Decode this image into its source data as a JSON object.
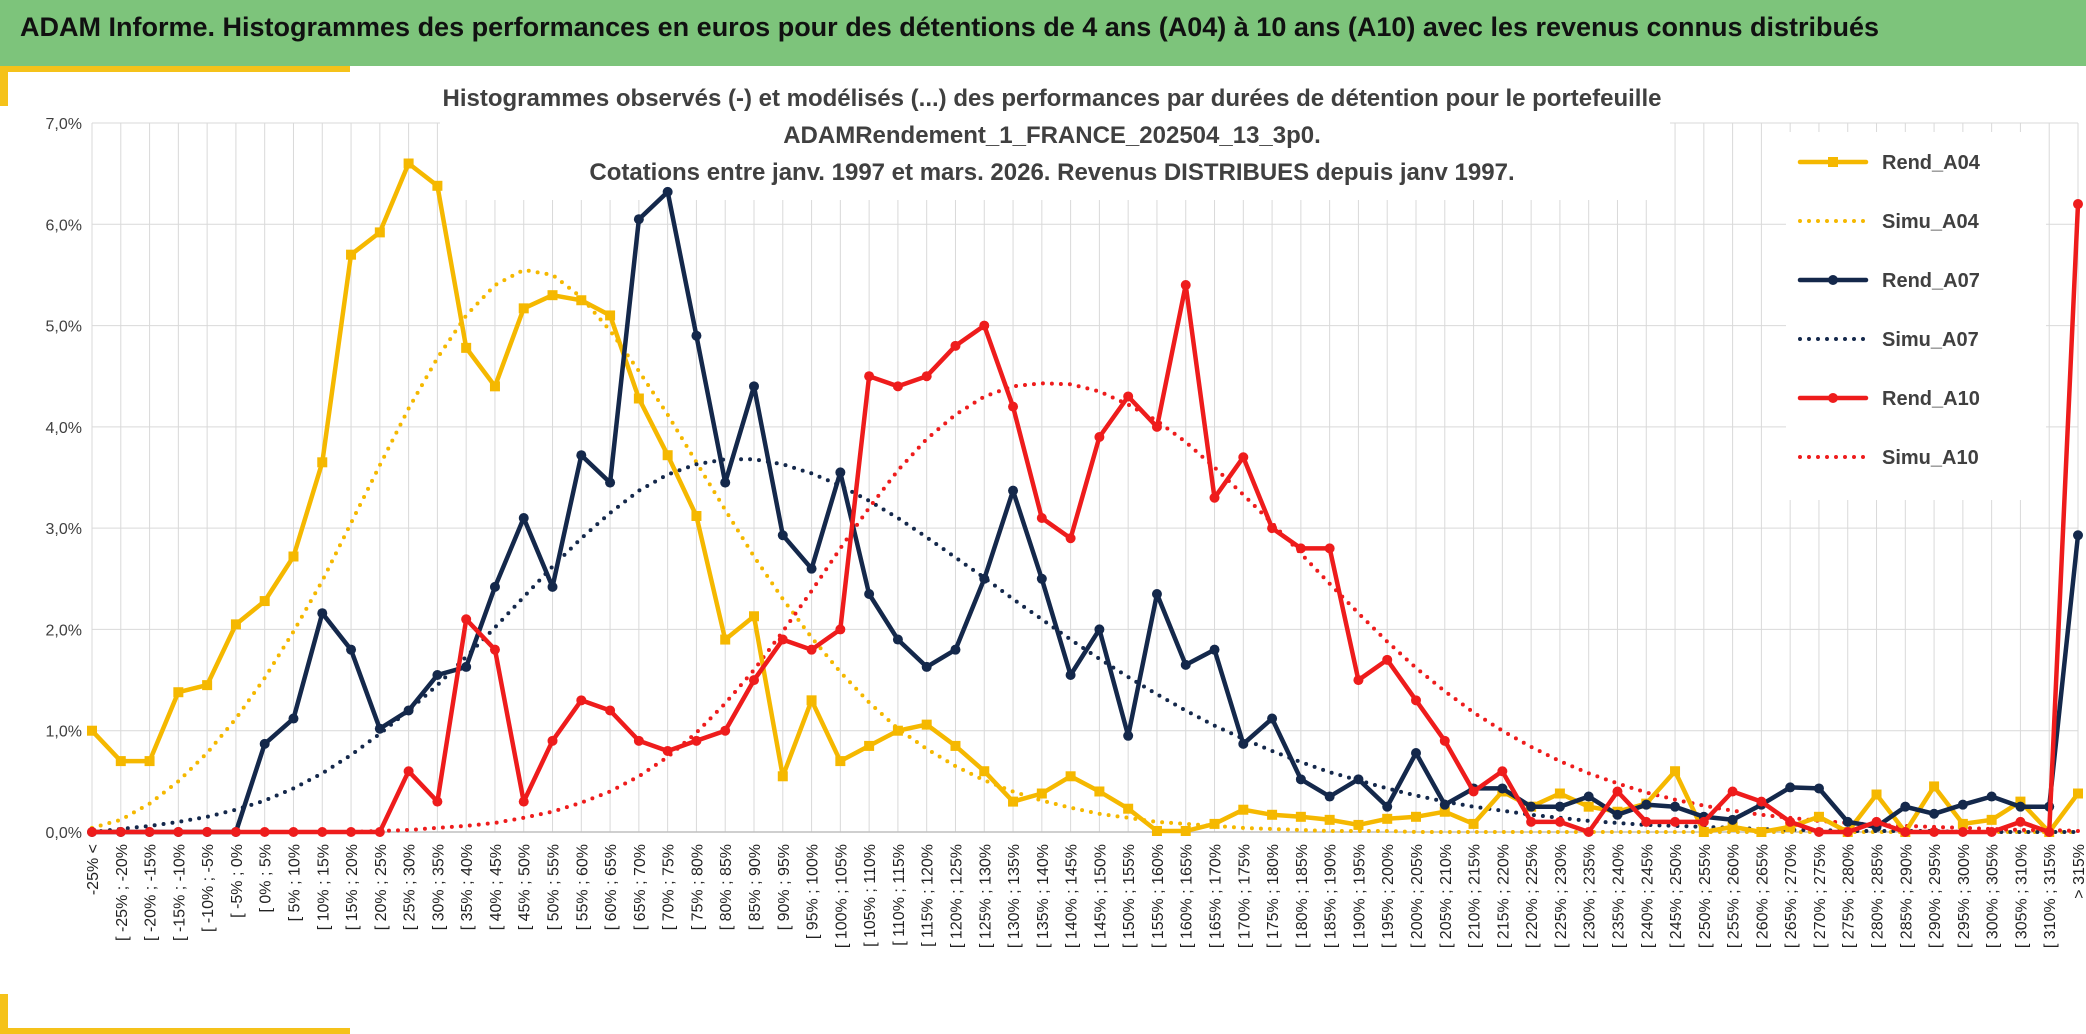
{
  "header": {
    "title": "ADAM Informe. Histogrammes des performances en euros pour des détentions de 4 ans (A04) à 10 ans (A10) avec les revenus connus distribués"
  },
  "colors": {
    "header_bg": "#7dc47b",
    "accent": "#f5c21a",
    "A04": "#f5b800",
    "A07": "#14284b",
    "A10": "#ee1c1c",
    "grid": "#d9d9d9"
  },
  "chart_data": {
    "type": "line",
    "title": "Histogrammes observés (-) et modélisés (...) des performances par durées de détention pour le portefeuille ADAMRendement_1_FRANCE_202504_13_3p0. Cotations entre janv. 1997 et mars. 2026. Revenus DISTRIBUES depuis janv 1997.",
    "title_lines": [
      "Histogrammes observés (-) et modélisés (...) des performances par durées de détention pour le portefeuille",
      "ADAMRendement_1_FRANCE_202504_13_3p0.",
      "Cotations entre janv. 1997 et mars. 2026. Revenus DISTRIBUES depuis janv 1997."
    ],
    "ylim": [
      0,
      7
    ],
    "yticks": [
      "0,0%",
      "1,0%",
      "2,0%",
      "3,0%",
      "4,0%",
      "5,0%",
      "6,0%",
      "7,0%"
    ],
    "grid": true,
    "legend_position": "right",
    "categories": [
      "-25% <",
      "[ -25% ; -20%",
      "[ -20% ; -15%",
      "[ -15% ; -10%",
      "[ -10% ; -5%",
      "[ -5% ; 0%",
      "[ 0% ; 5%",
      "[ 5% ; 10%",
      "[ 10% ; 15%",
      "[ 15% ; 20%",
      "[ 20% ; 25%",
      "[ 25% ; 30%",
      "[ 30% ; 35%",
      "[ 35% ; 40%",
      "[ 40% ; 45%",
      "[ 45% ; 50%",
      "[ 50% ; 55%",
      "[ 55% ; 60%",
      "[ 60% ; 65%",
      "[ 65% ; 70%",
      "[ 70% ; 75%",
      "[ 75% ; 80%",
      "[ 80% ; 85%",
      "[ 85% ; 90%",
      "[ 90% ; 95%",
      "[ 95% ; 100%",
      "[ 100% ; 105%",
      "[ 105% ; 110%",
      "[ 110% ; 115%",
      "[ 115% ; 120%",
      "[ 120% ; 125%",
      "[ 125% ; 130%",
      "[ 130% ; 135%",
      "[ 135% ; 140%",
      "[ 140% ; 145%",
      "[ 145% ; 150%",
      "[ 150% ; 155%",
      "[ 155% ; 160%",
      "[ 160% ; 165%",
      "[ 165% ; 170%",
      "[ 170% ; 175%",
      "[ 175% ; 180%",
      "[ 180% ; 185%",
      "[ 185% ; 190%",
      "[ 190% ; 195%",
      "[ 195% ; 200%",
      "[ 200% ; 205%",
      "[ 205% ; 210%",
      "[ 210% ; 215%",
      "[ 215% ; 220%",
      "[ 220% ; 225%",
      "[ 225% ; 230%",
      "[ 230% ; 235%",
      "[ 235% ; 240%",
      "[ 240% ; 245%",
      "[ 245% ; 250%",
      "[ 250% ; 255%",
      "[ 255% ; 260%",
      "[ 260% ; 265%",
      "[ 265% ; 270%",
      "[ 270% ; 275%",
      "[ 275% ; 280%",
      "[ 280% ; 285%",
      "[ 285% ; 290%",
      "[ 290% ; 295%",
      "[ 295% ; 300%",
      "[ 300% ; 305%",
      "[ 305% ; 310%",
      "[ 310% ; 315%",
      "> 315%"
    ],
    "series": [
      {
        "name": "Rend_A04",
        "style": "solid",
        "marker": "square",
        "color": "#f5b800",
        "values": [
          1.0,
          0.7,
          0.7,
          1.38,
          1.45,
          2.05,
          2.28,
          2.72,
          3.65,
          5.7,
          5.92,
          6.6,
          6.38,
          4.78,
          4.4,
          5.17,
          5.3,
          5.25,
          5.1,
          4.28,
          3.72,
          3.12,
          1.9,
          2.13,
          0.55,
          1.3,
          0.7,
          0.85,
          1.0,
          1.06,
          0.85,
          0.6,
          0.3,
          0.38,
          0.55,
          0.4,
          0.23,
          0.01,
          0.01,
          0.08,
          0.22,
          0.17,
          0.15,
          0.12,
          0.07,
          0.13,
          0.15,
          0.2,
          0.08,
          0.4,
          0.25,
          0.38,
          0.25,
          0.2,
          0.28,
          0.6,
          0.0,
          0.05,
          0.0,
          0.05,
          0.15,
          0.0,
          0.37,
          0.0,
          0.45,
          0.08,
          0.12,
          0.3,
          0.0,
          0.38
        ]
      },
      {
        "name": "Simu_A04",
        "style": "dotted",
        "marker": "none",
        "color": "#f5b800",
        "values": [
          0.04,
          0.12,
          0.28,
          0.5,
          0.78,
          1.12,
          1.52,
          1.98,
          2.48,
          3.05,
          3.62,
          4.18,
          4.68,
          5.1,
          5.4,
          5.55,
          5.5,
          5.28,
          4.95,
          4.55,
          4.12,
          3.65,
          3.18,
          2.72,
          2.3,
          1.92,
          1.58,
          1.28,
          1.02,
          0.82,
          0.65,
          0.51,
          0.4,
          0.31,
          0.24,
          0.18,
          0.14,
          0.1,
          0.08,
          0.06,
          0.04,
          0.03,
          0.02,
          0.01,
          0.01,
          0.01,
          0.0,
          0.0,
          0.0,
          0.0,
          0.0,
          0.0,
          0.0,
          0.0,
          0.0,
          0.0,
          0.0,
          0.0,
          0.0,
          0.0,
          0.0,
          0.0,
          0.0,
          0.0,
          0.0,
          0.0,
          0.0,
          0.0,
          0.0,
          0.0
        ]
      },
      {
        "name": "Rend_A07",
        "style": "solid",
        "marker": "circle",
        "color": "#14284b",
        "values": [
          0.0,
          0.0,
          0.0,
          0.0,
          0.0,
          0.0,
          0.87,
          1.12,
          2.16,
          1.8,
          1.02,
          1.2,
          1.55,
          1.63,
          2.42,
          3.1,
          2.42,
          3.72,
          3.45,
          6.05,
          6.32,
          4.9,
          3.45,
          4.4,
          2.93,
          2.6,
          3.55,
          2.35,
          1.9,
          1.63,
          1.8,
          2.5,
          3.37,
          2.5,
          1.55,
          2.0,
          0.95,
          2.35,
          1.65,
          1.8,
          0.87,
          1.12,
          0.52,
          0.35,
          0.52,
          0.25,
          0.78,
          0.27,
          0.43,
          0.43,
          0.25,
          0.25,
          0.35,
          0.17,
          0.27,
          0.25,
          0.15,
          0.12,
          0.27,
          0.44,
          0.43,
          0.1,
          0.05,
          0.25,
          0.18,
          0.27,
          0.35,
          0.25,
          0.25,
          2.93
        ]
      },
      {
        "name": "Simu_A07",
        "style": "dotted",
        "marker": "none",
        "color": "#14284b",
        "values": [
          0.0,
          0.03,
          0.06,
          0.1,
          0.15,
          0.22,
          0.31,
          0.43,
          0.58,
          0.76,
          0.97,
          1.2,
          1.45,
          1.73,
          2.02,
          2.32,
          2.62,
          2.9,
          3.15,
          3.37,
          3.53,
          3.63,
          3.68,
          3.68,
          3.63,
          3.54,
          3.42,
          3.27,
          3.1,
          2.91,
          2.71,
          2.51,
          2.3,
          2.1,
          1.9,
          1.71,
          1.53,
          1.36,
          1.2,
          1.05,
          0.92,
          0.8,
          0.69,
          0.59,
          0.51,
          0.43,
          0.36,
          0.3,
          0.25,
          0.21,
          0.17,
          0.14,
          0.11,
          0.09,
          0.07,
          0.06,
          0.05,
          0.04,
          0.03,
          0.02,
          0.02,
          0.01,
          0.01,
          0.01,
          0.01,
          0.0,
          0.0,
          0.0,
          0.0,
          0.0
        ]
      },
      {
        "name": "Rend_A10",
        "style": "solid",
        "marker": "circle",
        "color": "#ee1c1c",
        "values": [
          0.0,
          0.0,
          0.0,
          0.0,
          0.0,
          0.0,
          0.0,
          0.0,
          0.0,
          0.0,
          0.0,
          0.6,
          0.3,
          2.1,
          1.8,
          0.3,
          0.9,
          1.3,
          1.2,
          0.9,
          0.8,
          0.9,
          1.0,
          1.5,
          1.9,
          1.8,
          2.0,
          4.5,
          4.4,
          4.5,
          4.8,
          5.0,
          4.2,
          3.1,
          2.9,
          3.9,
          4.3,
          4.0,
          5.4,
          3.3,
          3.7,
          3.0,
          2.8,
          2.8,
          1.5,
          1.7,
          1.3,
          0.9,
          0.4,
          0.6,
          0.1,
          0.1,
          0.0,
          0.4,
          0.1,
          0.1,
          0.1,
          0.4,
          0.3,
          0.1,
          0.0,
          0.0,
          0.1,
          0.0,
          0.0,
          0.0,
          0.0,
          0.1,
          0.0,
          6.2
        ]
      },
      {
        "name": "Simu_A10",
        "style": "dotted",
        "marker": "none",
        "color": "#ee1c1c",
        "values": [
          0.0,
          0.0,
          0.0,
          0.0,
          0.0,
          0.0,
          0.0,
          0.0,
          0.0,
          0.0,
          0.01,
          0.02,
          0.04,
          0.06,
          0.09,
          0.14,
          0.2,
          0.29,
          0.4,
          0.55,
          0.74,
          0.98,
          1.27,
          1.6,
          1.98,
          2.38,
          2.8,
          3.2,
          3.57,
          3.88,
          4.12,
          4.3,
          4.4,
          4.43,
          4.42,
          4.35,
          4.22,
          4.06,
          3.85,
          3.6,
          3.33,
          3.05,
          2.75,
          2.45,
          2.16,
          1.88,
          1.62,
          1.39,
          1.18,
          1.0,
          0.84,
          0.7,
          0.58,
          0.48,
          0.39,
          0.32,
          0.26,
          0.21,
          0.17,
          0.14,
          0.11,
          0.09,
          0.07,
          0.06,
          0.05,
          0.04,
          0.03,
          0.02,
          0.02,
          0.01
        ]
      }
    ]
  }
}
